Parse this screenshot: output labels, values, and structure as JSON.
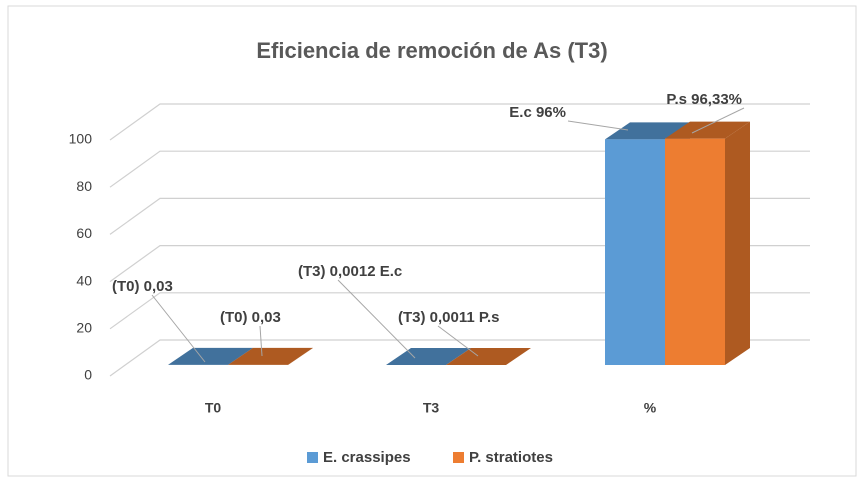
{
  "chart_data": {
    "type": "bar3d",
    "title": "Eficiencia de remoción de As (T3)",
    "categories": [
      "T0",
      "T3",
      "%"
    ],
    "series": [
      {
        "name": "E. crassipes",
        "color": "#5b9bd5",
        "side_color": "#41719c",
        "values": [
          0.03,
          0.0012,
          96
        ],
        "value_labels": [
          "(T0) 0,03",
          "(T3) 0,0012 E.c",
          "E.c 96%"
        ]
      },
      {
        "name": "P. stratiotes",
        "color": "#ed7d31",
        "side_color": "#ae5a21",
        "values": [
          0.03,
          0.0011,
          96.33
        ],
        "value_labels": [
          "(T0) 0,03",
          "(T3) 0,0011 P.s",
          "P.s 96,33%"
        ]
      }
    ],
    "ylim": [
      0,
      100
    ],
    "yticks": [
      0,
      20,
      40,
      60,
      80,
      100
    ],
    "grid": true,
    "legend": "bottom"
  }
}
